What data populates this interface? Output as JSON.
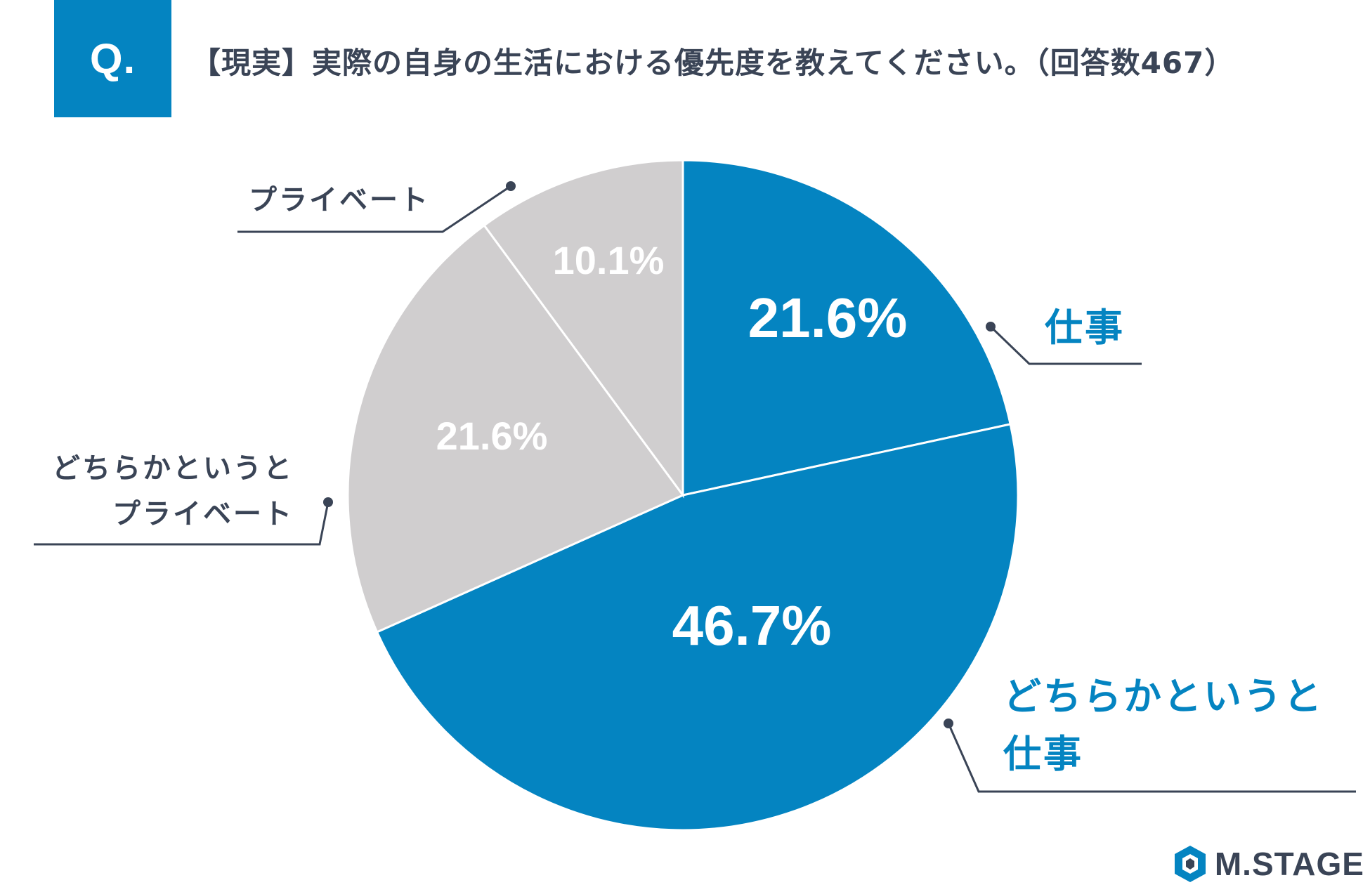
{
  "header": {
    "badge": "Q.",
    "question": "【現実】実際の自身の生活における優先度を教えてください。（回答数467）"
  },
  "chart_data": {
    "type": "pie",
    "slices": [
      {
        "label_lines": [
          "仕事"
        ],
        "value": 21.6,
        "value_label": "21.6%",
        "color": "#0484c1"
      },
      {
        "label_lines": [
          "どちらかというと",
          "仕事"
        ],
        "value": 46.7,
        "value_label": "46.7%",
        "color": "#0484c1"
      },
      {
        "label_lines": [
          "どちらかというと",
          "プライベート"
        ],
        "value": 21.6,
        "value_label": "21.6%",
        "color": "#d0cecf"
      },
      {
        "label_lines": [
          "プライベート"
        ],
        "value": 10.1,
        "value_label": "10.1%",
        "color": "#d0cecf"
      }
    ],
    "start": "12 o'clock",
    "direction": "clockwise"
  },
  "brand": {
    "name": "M.STAGE",
    "logo_icon": "hexagon-logo-icon"
  }
}
